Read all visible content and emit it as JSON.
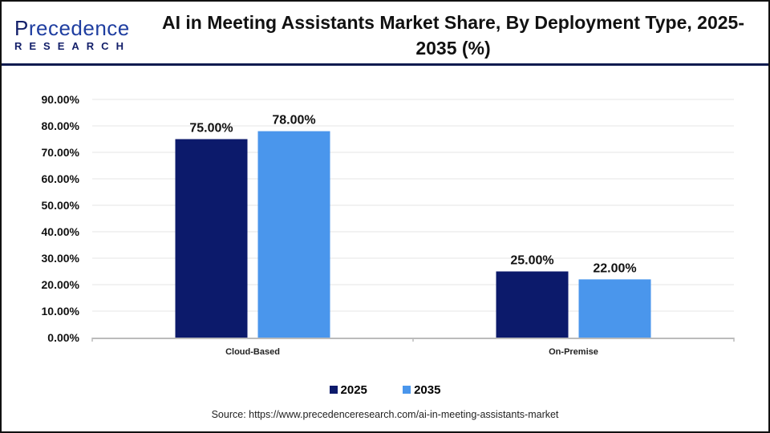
{
  "logo": {
    "text_top_initial": "P",
    "text_top_rest": "recedence",
    "text_bottom": "RESEARCH"
  },
  "title": "AI in Meeting Assistants Market Share, By Deployment Type, 2025-2035 (%)",
  "source": "Source: https://www.precedenceresearch.com/ai-in-meeting-assistants-market",
  "colors": {
    "2025": "#0c1a6b",
    "2035": "#4a96ec"
  },
  "chart_data": {
    "type": "bar",
    "title": "AI in Meeting Assistants Market Share, By Deployment Type, 2025-2035 (%)",
    "categories": [
      "Cloud-Based",
      "On-Premise"
    ],
    "series": [
      {
        "name": "2025",
        "values": [
          75.0,
          25.0
        ],
        "labels": [
          "75.00%",
          "25.00%"
        ]
      },
      {
        "name": "2035",
        "values": [
          78.0,
          22.0
        ],
        "labels": [
          "78.00%",
          "22.00%"
        ]
      }
    ],
    "ylim": [
      0,
      90
    ],
    "yticks": [
      "0.00%",
      "10.00%",
      "20.00%",
      "30.00%",
      "40.00%",
      "50.00%",
      "60.00%",
      "70.00%",
      "80.00%",
      "90.00%"
    ],
    "grid": true,
    "legend": "bottom"
  }
}
